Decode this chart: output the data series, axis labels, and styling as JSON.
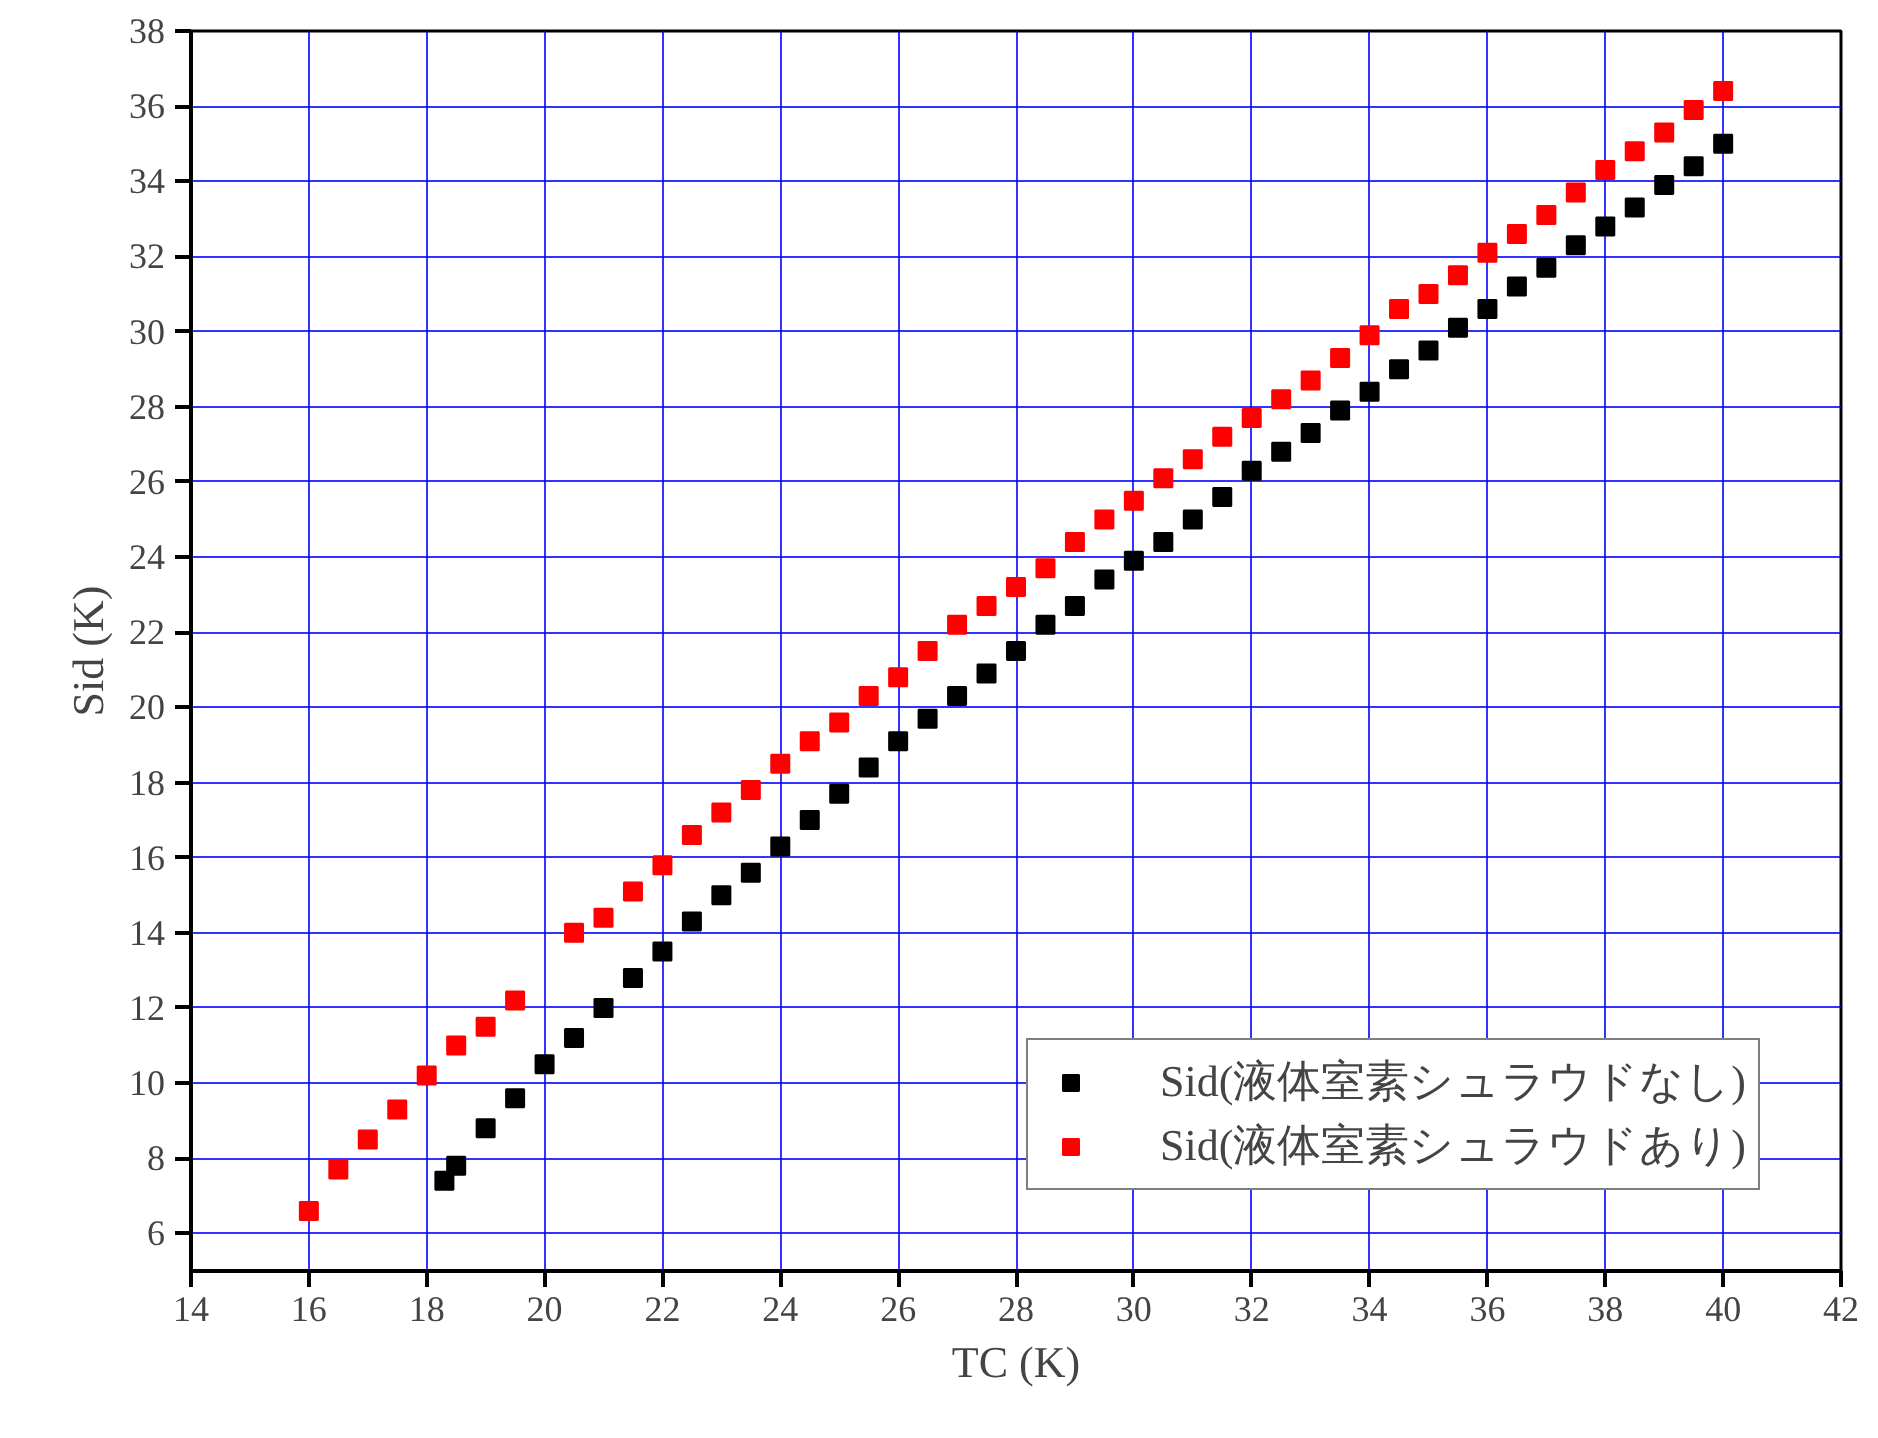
{
  "chart_data": {
    "type": "scatter",
    "xlabel": "TC (K)",
    "ylabel": "Sid (K)",
    "marker": "square",
    "grid": true,
    "legend": "bottom right",
    "xlim": [
      14,
      42
    ],
    "ylim": [
      5,
      38
    ],
    "xticks": [
      14,
      16,
      18,
      20,
      22,
      24,
      26,
      28,
      30,
      32,
      34,
      36,
      38,
      40,
      42
    ],
    "yticks": [
      6,
      8,
      10,
      12,
      14,
      16,
      18,
      20,
      22,
      24,
      26,
      28,
      30,
      32,
      34,
      36,
      38
    ],
    "series": [
      {
        "name": "Sid(液体室素シュラウドなし)",
        "color": "#000000",
        "x": [
          18.3,
          18.5,
          19,
          19.5,
          20,
          20.5,
          21,
          21.5,
          22,
          22.5,
          23,
          23.5,
          24,
          24.5,
          25,
          25.5,
          26,
          26.5,
          27,
          27.5,
          28,
          28.5,
          29,
          29.5,
          30,
          30.5,
          31,
          31.5,
          32,
          32.5,
          33,
          33.5,
          34,
          34.5,
          35,
          35.5,
          36,
          36.5,
          37,
          37.5,
          38,
          38.5,
          39,
          39.5,
          40
        ],
        "values": [
          7.4,
          7.8,
          8.8,
          9.6,
          10.5,
          11.2,
          12.0,
          12.8,
          13.5,
          14.3,
          15.0,
          15.6,
          16.3,
          17.0,
          17.7,
          18.4,
          19.1,
          19.7,
          20.3,
          20.9,
          21.5,
          22.2,
          22.7,
          23.4,
          23.9,
          24.4,
          25.0,
          25.6,
          26.3,
          26.8,
          27.3,
          27.9,
          28.4,
          29.0,
          29.5,
          30.1,
          30.6,
          31.2,
          31.7,
          32.3,
          32.8,
          33.3,
          33.9,
          34.4,
          35.0
        ]
      },
      {
        "name": "Sid(液体室素シュラウドあり)",
        "color": "#ff0000",
        "x": [
          16,
          16.5,
          17,
          17.5,
          18,
          18.5,
          19,
          19.5,
          20.5,
          21,
          21.5,
          22,
          22.5,
          23,
          23.5,
          24,
          24.5,
          25,
          25.5,
          26,
          26.5,
          27,
          27.5,
          28,
          28.5,
          29,
          29.5,
          30,
          30.5,
          31,
          31.5,
          32,
          32.5,
          33,
          33.5,
          34,
          34.5,
          35,
          35.5,
          36,
          36.5,
          37,
          37.5,
          38,
          38.5,
          39,
          39.5,
          40
        ],
        "values": [
          6.6,
          7.7,
          8.5,
          9.3,
          10.2,
          11.0,
          11.5,
          12.2,
          14.0,
          14.4,
          15.1,
          15.8,
          16.6,
          17.2,
          17.8,
          18.5,
          19.1,
          19.6,
          20.3,
          20.8,
          21.5,
          22.2,
          22.7,
          23.2,
          23.7,
          24.4,
          25.0,
          25.5,
          26.1,
          26.6,
          27.2,
          27.7,
          28.2,
          28.7,
          29.3,
          29.9,
          30.6,
          31.0,
          31.5,
          32.1,
          32.6,
          33.1,
          33.7,
          34.3,
          34.8,
          35.3,
          35.9,
          36.4
        ]
      }
    ]
  }
}
